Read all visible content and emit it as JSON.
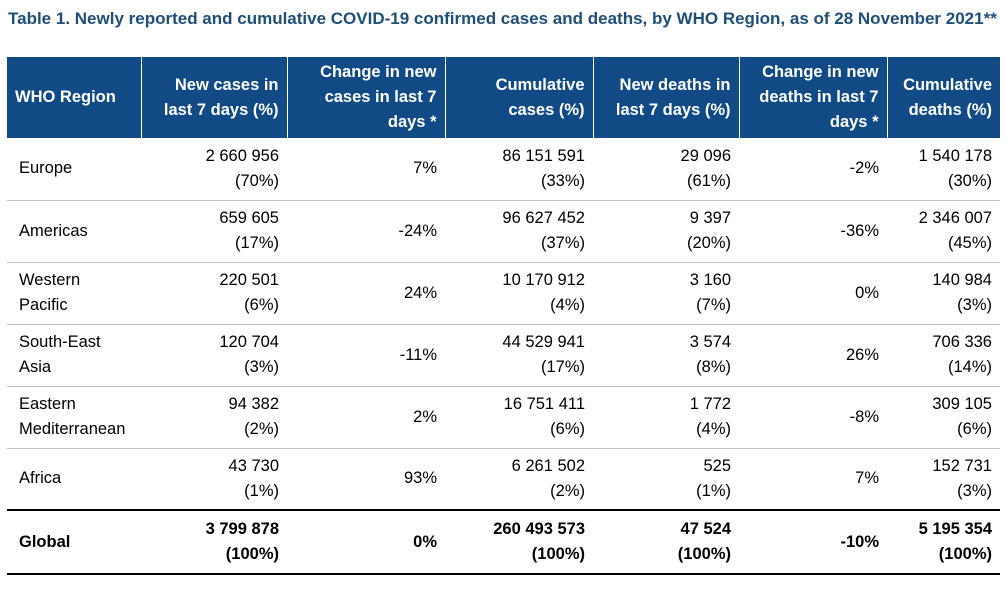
{
  "title": "Table 1. Newly reported and cumulative COVID-19 confirmed cases and deaths, by WHO Region, as of 28 November 2021**",
  "colors": {
    "title": "#1f4e79",
    "header_bg": "#114a85",
    "header_text": "#ffffff"
  },
  "headers": [
    "WHO Region",
    "New cases in last 7 days (%)",
    "Change in new cases in last 7 days *",
    "Cumulative cases (%)",
    "New deaths in last 7 days (%)",
    "Change in new deaths in last 7 days *",
    "Cumulative deaths (%)"
  ],
  "rows": [
    {
      "region": [
        "Europe",
        ""
      ],
      "new_cases": [
        "2 660 956",
        "(70%)"
      ],
      "change_cases": "7%",
      "cum_cases": [
        "86 151 591",
        "(33%)"
      ],
      "new_deaths": [
        "29 096",
        "(61%)"
      ],
      "change_deaths": "-2%",
      "cum_deaths": [
        "1 540 178",
        "(30%)"
      ]
    },
    {
      "region": [
        "Americas",
        ""
      ],
      "new_cases": [
        "659 605",
        "(17%)"
      ],
      "change_cases": "-24%",
      "cum_cases": [
        "96 627 452",
        "(37%)"
      ],
      "new_deaths": [
        "9 397",
        "(20%)"
      ],
      "change_deaths": "-36%",
      "cum_deaths": [
        "2 346 007",
        "(45%)"
      ]
    },
    {
      "region": [
        "Western",
        "Pacific"
      ],
      "new_cases": [
        "220 501",
        "(6%)"
      ],
      "change_cases": "24%",
      "cum_cases": [
        "10 170 912",
        "(4%)"
      ],
      "new_deaths": [
        "3 160",
        "(7%)"
      ],
      "change_deaths": "0%",
      "cum_deaths": [
        "140 984",
        "(3%)"
      ]
    },
    {
      "region": [
        "South-East",
        "Asia"
      ],
      "new_cases": [
        "120 704",
        "(3%)"
      ],
      "change_cases": "-11%",
      "cum_cases": [
        "44 529 941",
        "(17%)"
      ],
      "new_deaths": [
        "3 574",
        "(8%)"
      ],
      "change_deaths": "26%",
      "cum_deaths": [
        "706 336",
        "(14%)"
      ]
    },
    {
      "region": [
        "Eastern",
        "Mediterranean"
      ],
      "new_cases": [
        "94 382",
        "(2%)"
      ],
      "change_cases": "2%",
      "cum_cases": [
        "16 751 411",
        "(6%)"
      ],
      "new_deaths": [
        "1 772",
        "(4%)"
      ],
      "change_deaths": "-8%",
      "cum_deaths": [
        "309 105",
        "(6%)"
      ]
    },
    {
      "region": [
        "Africa",
        ""
      ],
      "new_cases": [
        "43 730",
        "(1%)"
      ],
      "change_cases": "93%",
      "cum_cases": [
        "6 261 502",
        "(2%)"
      ],
      "new_deaths": [
        "525",
        "(1%)"
      ],
      "change_deaths": "7%",
      "cum_deaths": [
        "152 731",
        "(3%)"
      ]
    }
  ],
  "global": {
    "region": "Global",
    "new_cases": [
      "3 799 878",
      "(100%)"
    ],
    "change_cases": "0%",
    "cum_cases": [
      "260 493 573",
      "(100%)"
    ],
    "new_deaths": [
      "47 524",
      "(100%)"
    ],
    "change_deaths": "-10%",
    "cum_deaths": [
      "5 195 354",
      "(100%)"
    ]
  }
}
